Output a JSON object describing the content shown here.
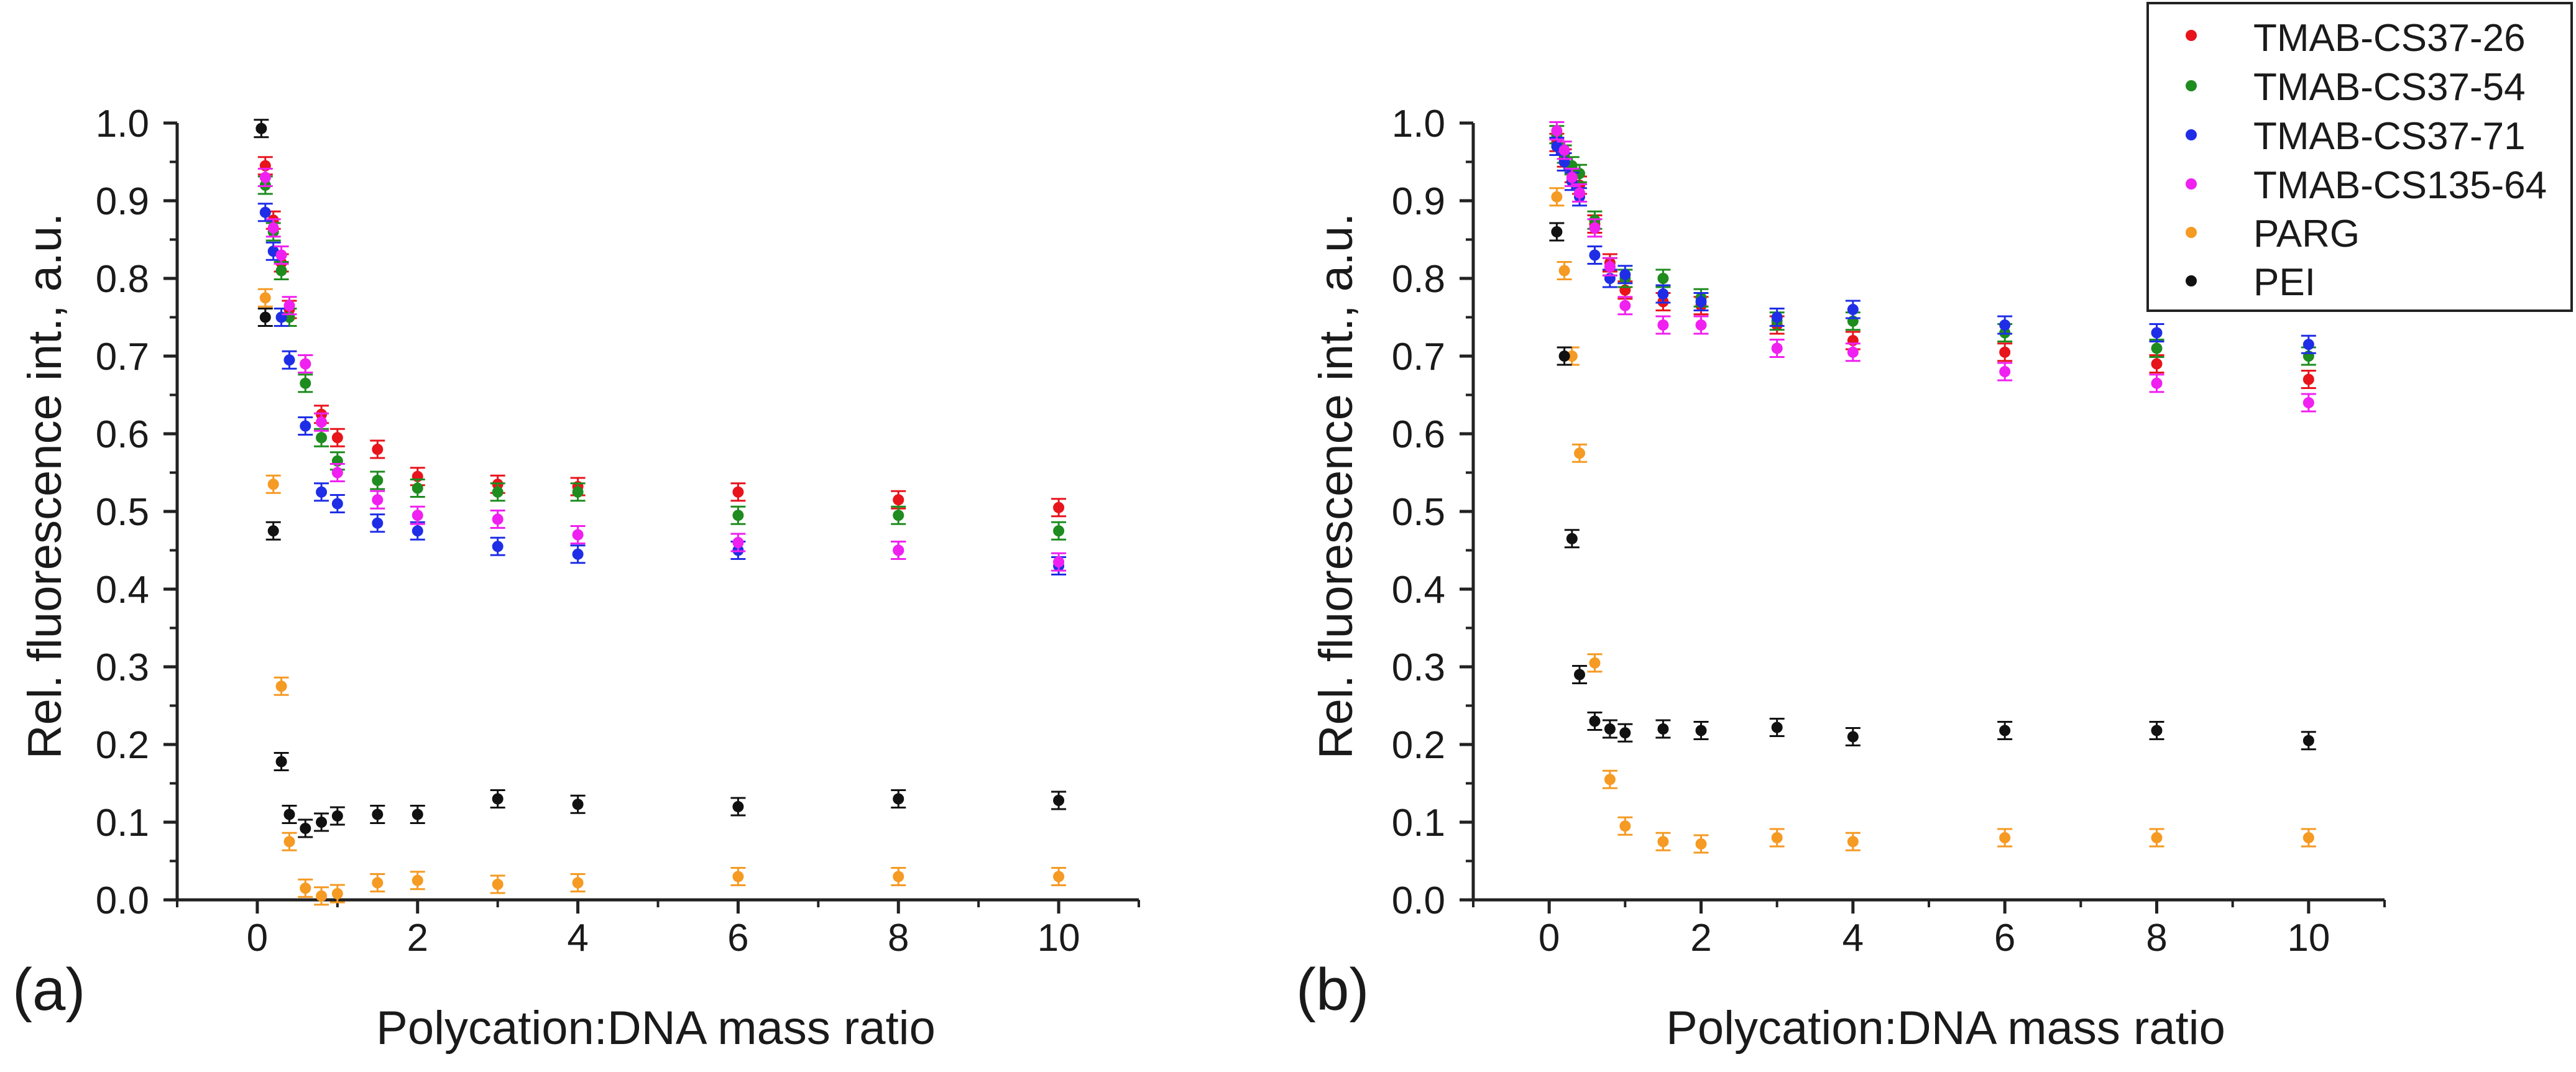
{
  "colors": {
    "TMAB-CS37-26": "#e8141c",
    "TMAB-CS37-54": "#1e8c1e",
    "TMAB-CS37-71": "#1f2ee6",
    "TMAB-CS135-64": "#f020f0",
    "PARG": "#f59a23",
    "PEI": "#111111"
  },
  "legend": {
    "entries": [
      "TMAB-CS37-26",
      "TMAB-CS37-54",
      "TMAB-CS37-71",
      "TMAB-CS135-64",
      "PARG",
      "PEI"
    ]
  },
  "chart_data": [
    {
      "type": "scatter",
      "panel_label": "(a)",
      "xlabel": "Polycation:DNA mass ratio",
      "ylabel": "Rel. fluorescence int., a.u.",
      "xlim": [
        -1,
        11
      ],
      "ylim": [
        0,
        1
      ],
      "xticks": [
        0,
        2,
        4,
        6,
        8,
        10
      ],
      "yticks": [
        "0.0",
        "0.1",
        "0.2",
        "0.3",
        "0.4",
        "0.5",
        "0.6",
        "0.7",
        "0.8",
        "0.9",
        "1.0"
      ],
      "series": [
        {
          "name": "TMAB-CS37-26",
          "x": [
            0.1,
            0.2,
            0.3,
            0.4,
            0.6,
            0.8,
            1,
            1.5,
            2,
            3,
            4,
            6,
            8,
            10
          ],
          "y": [
            0.945,
            0.875,
            0.82,
            0.76,
            0.69,
            0.625,
            0.595,
            0.58,
            0.545,
            0.535,
            0.532,
            0.525,
            0.515,
            0.505
          ]
        },
        {
          "name": "TMAB-CS37-54",
          "x": [
            0.1,
            0.2,
            0.3,
            0.4,
            0.6,
            0.8,
            1,
            1.5,
            2,
            3,
            4,
            6,
            8,
            10
          ],
          "y": [
            0.92,
            0.86,
            0.81,
            0.75,
            0.665,
            0.595,
            0.565,
            0.54,
            0.53,
            0.525,
            0.525,
            0.495,
            0.495,
            0.475
          ]
        },
        {
          "name": "TMAB-CS37-71",
          "x": [
            0.1,
            0.2,
            0.3,
            0.4,
            0.6,
            0.8,
            1,
            1.5,
            2,
            3,
            4,
            6,
            8,
            10
          ],
          "y": [
            0.885,
            0.835,
            0.75,
            0.695,
            0.61,
            0.525,
            0.51,
            0.485,
            0.475,
            0.455,
            0.445,
            0.45,
            0.45,
            0.43
          ]
        },
        {
          "name": "TMAB-CS135-64",
          "x": [
            0.1,
            0.2,
            0.3,
            0.4,
            0.6,
            0.8,
            1,
            1.5,
            2,
            3,
            4,
            6,
            8,
            10
          ],
          "y": [
            0.93,
            0.865,
            0.83,
            0.765,
            0.69,
            0.615,
            0.55,
            0.515,
            0.495,
            0.49,
            0.47,
            0.46,
            0.45,
            0.435
          ]
        },
        {
          "name": "PARG",
          "x": [
            0.1,
            0.2,
            0.3,
            0.4,
            0.6,
            0.8,
            1,
            1.5,
            2,
            3,
            4,
            6,
            8,
            10
          ],
          "y": [
            0.775,
            0.535,
            0.275,
            0.075,
            0.015,
            0.005,
            0.008,
            0.022,
            0.025,
            0.02,
            0.022,
            0.03,
            0.03,
            0.03
          ]
        },
        {
          "name": "PEI",
          "x": [
            0.05,
            0.1,
            0.2,
            0.3,
            0.4,
            0.6,
            0.8,
            1,
            1.5,
            2,
            3,
            4,
            6,
            8,
            10
          ],
          "y": [
            0.993,
            0.75,
            0.475,
            0.178,
            0.11,
            0.092,
            0.1,
            0.108,
            0.11,
            0.11,
            0.13,
            0.123,
            0.12,
            0.13,
            0.128
          ]
        }
      ]
    },
    {
      "type": "scatter",
      "panel_label": "(b)",
      "xlabel": "Polycation:DNA mass ratio",
      "ylabel": "Rel. fluorescence int., a.u.",
      "xlim": [
        -1,
        11
      ],
      "ylim": [
        0,
        1
      ],
      "xticks": [
        0,
        2,
        4,
        6,
        8,
        10
      ],
      "yticks": [
        "0.0",
        "0.1",
        "0.2",
        "0.3",
        "0.4",
        "0.5",
        "0.6",
        "0.7",
        "0.8",
        "0.9",
        "1.0"
      ],
      "series": [
        {
          "name": "TMAB-CS37-26",
          "x": [
            0.1,
            0.2,
            0.3,
            0.4,
            0.6,
            0.8,
            1,
            1.5,
            2,
            3,
            4,
            6,
            8,
            10
          ],
          "y": [
            0.975,
            0.955,
            0.935,
            0.92,
            0.87,
            0.82,
            0.785,
            0.77,
            0.765,
            0.74,
            0.72,
            0.705,
            0.69,
            0.67
          ]
        },
        {
          "name": "TMAB-CS37-54",
          "x": [
            0.1,
            0.2,
            0.3,
            0.4,
            0.6,
            0.8,
            1,
            1.5,
            2,
            3,
            4,
            6,
            8,
            10
          ],
          "y": [
            0.985,
            0.96,
            0.945,
            0.935,
            0.875,
            0.815,
            0.8,
            0.8,
            0.775,
            0.745,
            0.745,
            0.73,
            0.71,
            0.7
          ]
        },
        {
          "name": "TMAB-CS37-71",
          "x": [
            0.1,
            0.2,
            0.3,
            0.4,
            0.6,
            0.8,
            1,
            1.5,
            2,
            3,
            4,
            6,
            8,
            10
          ],
          "y": [
            0.97,
            0.95,
            0.925,
            0.905,
            0.83,
            0.8,
            0.805,
            0.78,
            0.77,
            0.75,
            0.76,
            0.74,
            0.73,
            0.715
          ]
        },
        {
          "name": "TMAB-CS135-64",
          "x": [
            0.1,
            0.2,
            0.3,
            0.4,
            0.6,
            0.8,
            1,
            1.5,
            2,
            3,
            4,
            6,
            8,
            10
          ],
          "y": [
            0.99,
            0.965,
            0.93,
            0.91,
            0.865,
            0.815,
            0.765,
            0.74,
            0.74,
            0.71,
            0.705,
            0.68,
            0.665,
            0.64
          ]
        },
        {
          "name": "PARG",
          "x": [
            0.1,
            0.2,
            0.3,
            0.4,
            0.6,
            0.8,
            1,
            1.5,
            2,
            3,
            4,
            6,
            8,
            10
          ],
          "y": [
            0.905,
            0.81,
            0.7,
            0.575,
            0.305,
            0.155,
            0.095,
            0.075,
            0.072,
            0.08,
            0.075,
            0.08,
            0.08,
            0.08
          ]
        },
        {
          "name": "PEI",
          "x": [
            0.1,
            0.2,
            0.3,
            0.4,
            0.6,
            0.8,
            1,
            1.5,
            2,
            3,
            4,
            6,
            8,
            10
          ],
          "y": [
            0.86,
            0.7,
            0.465,
            0.29,
            0.23,
            0.22,
            0.215,
            0.22,
            0.218,
            0.222,
            0.21,
            0.218,
            0.218,
            0.205
          ]
        }
      ]
    }
  ]
}
